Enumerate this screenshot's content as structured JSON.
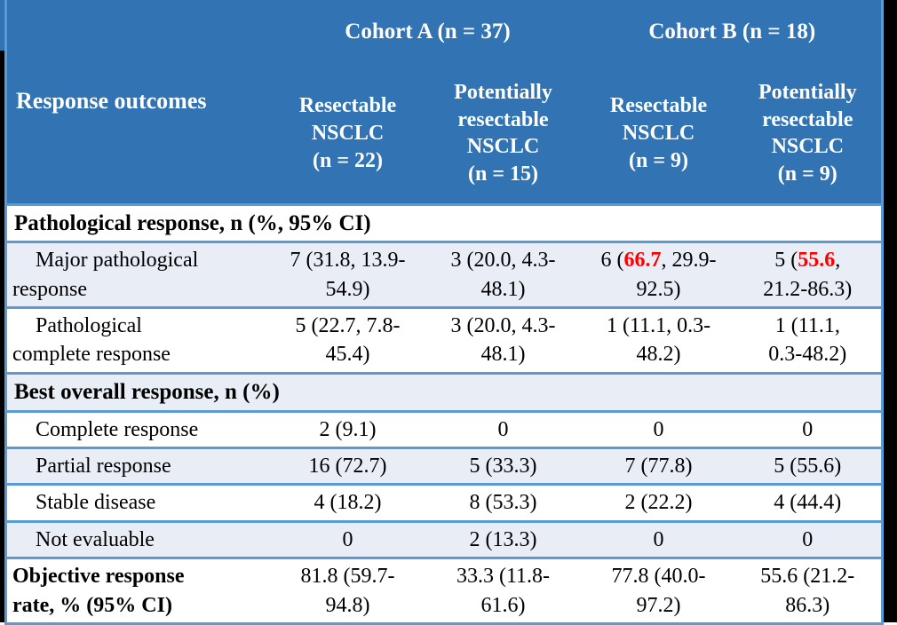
{
  "colors": {
    "header_bg": "#3273B4",
    "header_text": "#FFFFFF",
    "band_bg": "#E9EDF6",
    "row_bg": "#FFFFFF",
    "border_blue": "#5B9BD5",
    "highlight_red": "#FF0000",
    "frame_black": "#000000",
    "body_text": "#000000"
  },
  "table": {
    "header": {
      "response_outcomes_label": "Response outcomes",
      "cohorts": [
        {
          "label": "Cohort A (n = 37)",
          "colspan": 2
        },
        {
          "label": "Cohort B (n = 18)",
          "colspan": 2
        }
      ],
      "columns": [
        {
          "label": "Resectable NSCLC (n = 22)",
          "display": "Resectable\nNSCLC\n(n = 22)"
        },
        {
          "label": "Potentially resectable NSCLC (n = 15)",
          "display": "Potentially\nresectable\nNSCLC\n(n = 15)"
        },
        {
          "label": "Resectable NSCLC (n = 9)",
          "display": "Resectable\nNSCLC\n(n = 9)"
        },
        {
          "label": "Potentially resectable NSCLC (n = 9)",
          "display": "Potentially\nresectable\nNSCLC\n(n = 9)"
        }
      ]
    },
    "rows": [
      {
        "type": "section",
        "label": "Pathological response, n (%, 95% CI)"
      },
      {
        "type": "data",
        "label": "Major pathological\nresponse",
        "indent": true,
        "values": [
          {
            "text": "7 (31.8, 13.9-\n54.9)"
          },
          {
            "text": "3 (20.0, 4.3-\n48.1)"
          },
          {
            "prefix": "6 (",
            "highlight": "66.7",
            "suffix": ", 29.9-\n92.5)"
          },
          {
            "prefix": "5 (",
            "highlight": "55.6",
            "suffix": ",\n21.2-86.3)"
          }
        ]
      },
      {
        "type": "data",
        "label": "Pathological\ncomplete response",
        "indent": true,
        "values": [
          {
            "text": "5 (22.7, 7.8-\n45.4)"
          },
          {
            "text": "3 (20.0, 4.3-\n48.1)"
          },
          {
            "text": "1 (11.1, 0.3-\n48.2)"
          },
          {
            "text": "1 (11.1,\n0.3-48.2)"
          }
        ]
      },
      {
        "type": "section",
        "label": "Best overall response, n (%)"
      },
      {
        "type": "data",
        "label": "Complete response",
        "indent": true,
        "values": [
          {
            "text": "2 (9.1)"
          },
          {
            "text": "0"
          },
          {
            "text": "0"
          },
          {
            "text": "0"
          }
        ]
      },
      {
        "type": "data",
        "label": "Partial response",
        "indent": true,
        "values": [
          {
            "text": "16 (72.7)"
          },
          {
            "text": "5 (33.3)"
          },
          {
            "text": "7 (77.8)"
          },
          {
            "text": "5 (55.6)"
          }
        ]
      },
      {
        "type": "data",
        "label": "Stable disease",
        "indent": true,
        "values": [
          {
            "text": "4 (18.2)"
          },
          {
            "text": "8 (53.3)"
          },
          {
            "text": "2 (22.2)"
          },
          {
            "text": "4 (44.4)"
          }
        ]
      },
      {
        "type": "data",
        "label": "Not evaluable",
        "indent": true,
        "values": [
          {
            "text": "0"
          },
          {
            "text": "2 (13.3)"
          },
          {
            "text": "0"
          },
          {
            "text": "0"
          }
        ]
      },
      {
        "type": "data",
        "label": "Objective response\nrate, % (95% CI)",
        "indent": false,
        "bold_label": true,
        "values": [
          {
            "text": "81.8 (59.7-\n94.8)"
          },
          {
            "text": "33.3 (11.8-\n61.6)"
          },
          {
            "text": "77.8 (40.0-\n97.2)"
          },
          {
            "text": "55.6 (21.2-\n86.3)"
          }
        ]
      }
    ]
  }
}
